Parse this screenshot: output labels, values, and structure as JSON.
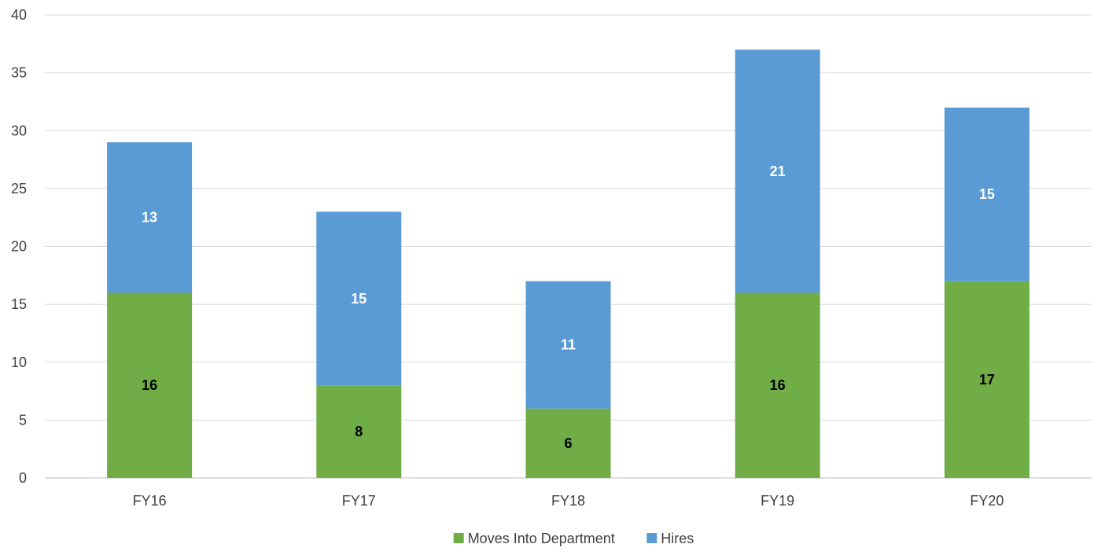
{
  "chart_data": {
    "type": "bar",
    "stacked": true,
    "categories": [
      "FY16",
      "FY17",
      "FY18",
      "FY19",
      "FY20"
    ],
    "series": [
      {
        "name": "Moves Into Department",
        "values": [
          16,
          8,
          6,
          16,
          17
        ],
        "color": "#70AD47",
        "label_color": "#000000"
      },
      {
        "name": "Hires",
        "values": [
          13,
          15,
          11,
          21,
          15
        ],
        "color": "#5B9BD5",
        "label_color": "#FFFFFF"
      }
    ],
    "title": "",
    "xlabel": "",
    "ylabel": "",
    "ylim": [
      0,
      40
    ],
    "yticks": [
      0,
      5,
      10,
      15,
      20,
      25,
      30,
      35,
      40
    ],
    "grid": true,
    "legend_position": "bottom",
    "gridline_color": "#D9D9D9",
    "axis_line_color": "#BFBFBF",
    "tick_label_color": "#404040"
  }
}
